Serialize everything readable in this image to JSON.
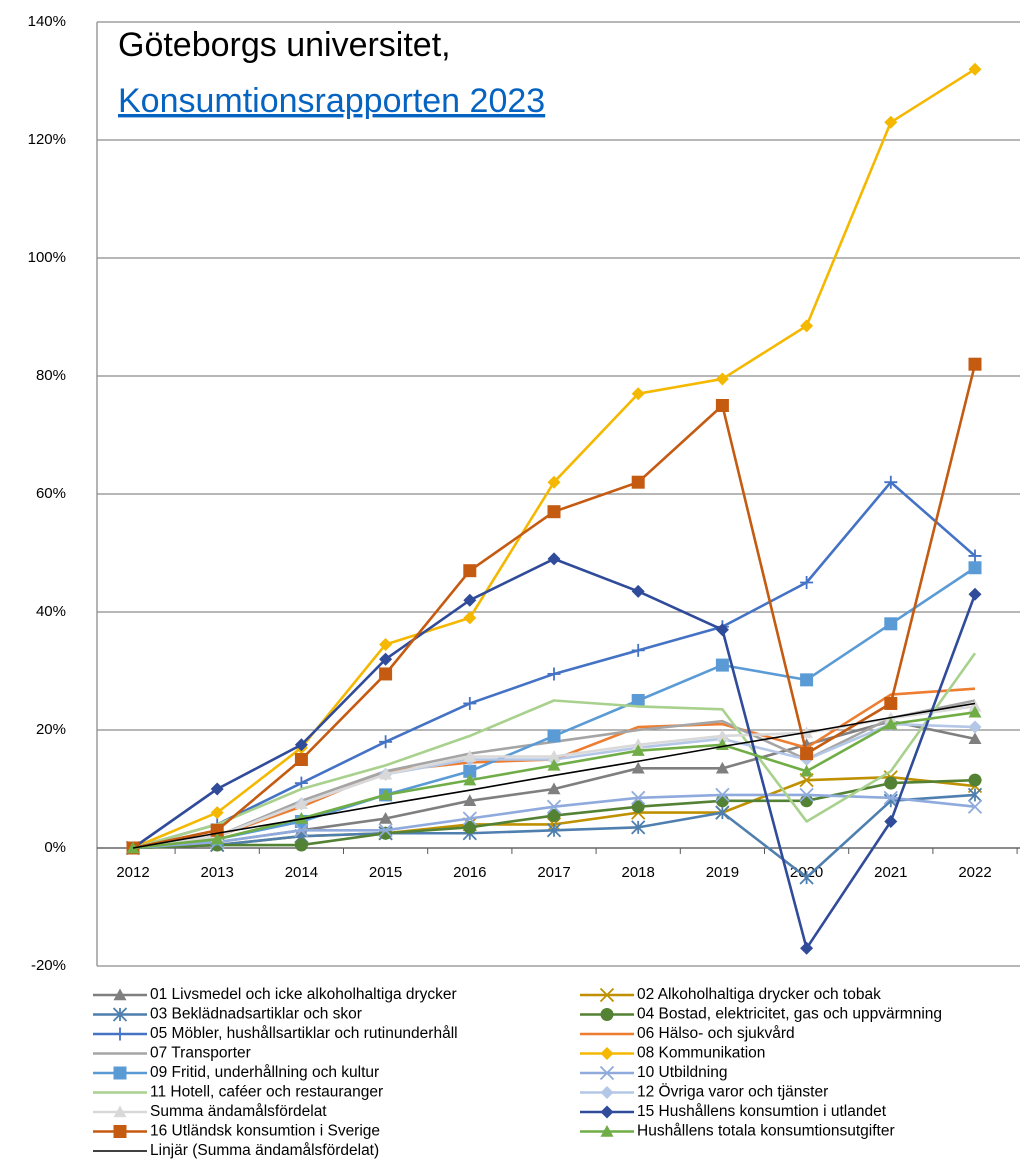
{
  "chart_data": {
    "type": "line",
    "title": "Göteborgs universitet,",
    "subtitle": "Konsumtionsrapporten 2023",
    "categories": [
      "2012",
      "2013",
      "2014",
      "2015",
      "2016",
      "2017",
      "2018",
      "2019",
      "2020",
      "2021",
      "2022"
    ],
    "ylim": [
      -20,
      140
    ],
    "yticks": [
      {
        "value": -20,
        "label": "-20%"
      },
      {
        "value": 0,
        "label": "0%"
      },
      {
        "value": 20,
        "label": "20%"
      },
      {
        "value": 40,
        "label": "40%"
      },
      {
        "value": 60,
        "label": "60%"
      },
      {
        "value": 80,
        "label": "80%"
      },
      {
        "value": 100,
        "label": "100%"
      },
      {
        "value": 120,
        "label": "120%"
      },
      {
        "value": 140,
        "label": "140%"
      }
    ],
    "grid": true,
    "legend": "bottom",
    "series": [
      {
        "name": "01 Livsmedel och icke alkoholhaltiga drycker",
        "color": "#7f7f7f",
        "marker": "triangle",
        "values": [
          0,
          1,
          3,
          5,
          8,
          10,
          13.5,
          13.5,
          17.5,
          21.5,
          18.5
        ]
      },
      {
        "name": "02 Alkoholhaltiga drycker och tobak",
        "color": "#bf9000",
        "marker": "x",
        "values": [
          0,
          0.5,
          2,
          2.5,
          4,
          4,
          6,
          6,
          11.5,
          12,
          10.5
        ]
      },
      {
        "name": "03 Beklädnadsartiklar och skor",
        "color": "#4e7fae",
        "marker": "star",
        "values": [
          0,
          0.5,
          2,
          2.5,
          2.5,
          3,
          3.5,
          6,
          -5,
          8,
          9
        ]
      },
      {
        "name": "04 Bostad, elektricitet, gas och uppvärmning",
        "color": "#548235",
        "marker": "circle",
        "values": [
          0,
          0.5,
          0.5,
          2.5,
          3.5,
          5.5,
          7,
          8,
          8,
          11,
          11.5
        ]
      },
      {
        "name": "05 Möbler, hushållsartiklar och rutinunderhåll",
        "color": "#4472c4",
        "marker": "plus",
        "values": [
          0,
          4,
          11,
          18,
          24.5,
          29.5,
          33.5,
          37.5,
          45,
          62,
          49.5
        ]
      },
      {
        "name": "06 Hälso- och sjukvård",
        "color": "#ed7d31",
        "marker": "none",
        "values": [
          0,
          2,
          7,
          13,
          14.5,
          15,
          20.5,
          21,
          17,
          26,
          27
        ]
      },
      {
        "name": "07 Transporter",
        "color": "#a5a5a5",
        "marker": "none",
        "values": [
          0,
          2,
          8,
          13,
          16,
          18,
          20,
          21.5,
          15,
          22,
          25
        ]
      },
      {
        "name": "08 Kommunikation",
        "color": "#f5b800",
        "marker": "diamond",
        "values": [
          0,
          6,
          17,
          34.5,
          39,
          62,
          77,
          79.5,
          88.5,
          123,
          132
        ]
      },
      {
        "name": "09 Fritid, underhållning och kultur",
        "color": "#5b9bd5",
        "marker": "square",
        "values": [
          0,
          1.5,
          4.5,
          9,
          13,
          19,
          25,
          31,
          28.5,
          38,
          47.5
        ]
      },
      {
        "name": "10 Utbildning",
        "color": "#8faadc",
        "marker": "x",
        "values": [
          0,
          1,
          3,
          3,
          5,
          7,
          8.5,
          9,
          9,
          8.5,
          7
        ]
      },
      {
        "name": "11 Hotell, caféer och restauranger",
        "color": "#a9d18e",
        "marker": "none",
        "values": [
          0,
          4,
          10,
          14,
          19,
          25,
          24,
          23.5,
          4.5,
          13,
          33
        ]
      },
      {
        "name": "12 Övriga varor och tjänster",
        "color": "#b4c7e7",
        "marker": "diamond",
        "values": [
          0,
          2,
          7.5,
          12.5,
          15,
          15,
          17,
          18.5,
          15,
          21,
          20.5
        ]
      },
      {
        "name": "Summa ändamålsfördelat",
        "color": "#d9d9d9",
        "marker": "triangle",
        "values": [
          0,
          2,
          7.5,
          12.5,
          15.5,
          15.5,
          17.5,
          19,
          19.5,
          22,
          24
        ]
      },
      {
        "name": "15 Hushållens konsumtion i utlandet",
        "color": "#2f4b9a",
        "marker": "diamond",
        "values": [
          0,
          10,
          17.5,
          32,
          42,
          49,
          43.5,
          37,
          -17,
          4.5,
          43
        ]
      },
      {
        "name": "16 Utländsk konsumtion i Sverige",
        "color": "#c55a11",
        "marker": "square",
        "values": [
          0,
          3,
          15,
          29.5,
          47,
          57,
          62,
          75,
          16,
          24.5,
          82
        ]
      },
      {
        "name": "Hushållens totala konsumtionsutgifter",
        "color": "#70ad47",
        "marker": "triangle",
        "values": [
          0,
          1.5,
          5,
          9,
          11.5,
          14,
          16.5,
          17.5,
          13,
          21,
          23
        ]
      },
      {
        "name": "Linjär (Summa ändamålsfördelat)",
        "color": "#000000",
        "marker": "none",
        "thin": true,
        "values": [
          0,
          2.5,
          4.9,
          7.4,
          9.8,
          12.3,
          14.7,
          17.2,
          19.6,
          22.1,
          24.5
        ]
      }
    ]
  }
}
